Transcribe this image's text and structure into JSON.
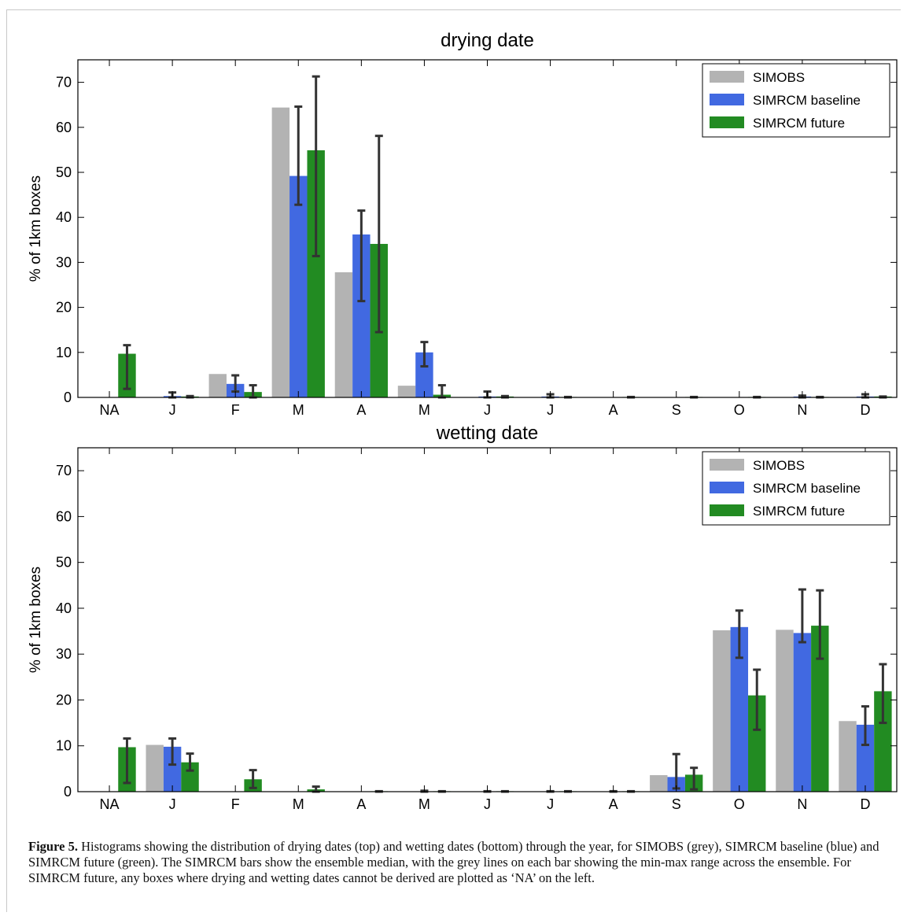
{
  "colors": {
    "simobs": "#b3b3b3",
    "baseline": "#4169e1",
    "future": "#228b22",
    "errorbar": "#333333"
  },
  "chart_data": [
    {
      "type": "bar",
      "title": "drying date",
      "ylabel": "% of 1km boxes",
      "xlabel": "",
      "ylim": [
        0,
        75
      ],
      "yticks": [
        0,
        10,
        20,
        30,
        40,
        50,
        60,
        70
      ],
      "categories": [
        "NA",
        "J",
        "F",
        "M",
        "A",
        "M",
        "J",
        "J",
        "A",
        "S",
        "O",
        "N",
        "D"
      ],
      "legend_position": "top-right",
      "series": [
        {
          "name": "SIMOBS",
          "color_key": "simobs",
          "values": [
            0,
            0,
            5.2,
            64.4,
            27.8,
            2.6,
            0,
            0,
            0,
            0,
            0,
            0,
            0
          ]
        },
        {
          "name": "SIMRCM baseline",
          "color_key": "baseline",
          "values": [
            0,
            0.3,
            3.0,
            49.2,
            36.2,
            10.0,
            0.2,
            0.2,
            0,
            0,
            0,
            0.2,
            0.2
          ],
          "err_min": [
            0,
            0,
            1.3,
            42.8,
            21.4,
            6.9,
            0,
            0,
            0,
            0,
            0,
            0,
            0
          ],
          "err_max": [
            0,
            1.1,
            4.9,
            64.6,
            41.5,
            12.3,
            1.3,
            0.7,
            0,
            0,
            0,
            0.4,
            0.7
          ]
        },
        {
          "name": "SIMRCM future",
          "color_key": "future",
          "values": [
            9.7,
            0.2,
            1.2,
            54.9,
            34.1,
            0.6,
            0.2,
            0.1,
            0.1,
            0.1,
            0.1,
            0.1,
            0.2
          ],
          "err_min": [
            1.9,
            0,
            0,
            31.4,
            14.5,
            0,
            0,
            0,
            0,
            0,
            0,
            0,
            0
          ],
          "err_max": [
            11.6,
            0.3,
            2.7,
            71.3,
            58.1,
            2.7,
            0.3,
            0.1,
            0.1,
            0.1,
            0.1,
            0.1,
            0.2
          ]
        }
      ]
    },
    {
      "type": "bar",
      "title": "wetting date",
      "ylabel": "% of 1km boxes",
      "xlabel": "",
      "ylim": [
        0,
        75
      ],
      "yticks": [
        0,
        10,
        20,
        30,
        40,
        50,
        60,
        70
      ],
      "categories": [
        "NA",
        "J",
        "F",
        "M",
        "A",
        "M",
        "J",
        "J",
        "A",
        "S",
        "O",
        "N",
        "D"
      ],
      "legend_position": "top-right",
      "series": [
        {
          "name": "SIMOBS",
          "color_key": "simobs",
          "values": [
            0,
            10.2,
            0,
            0,
            0,
            0,
            0,
            0,
            0,
            3.6,
            35.2,
            35.3,
            15.4
          ]
        },
        {
          "name": "SIMRCM baseline",
          "color_key": "baseline",
          "values": [
            0,
            9.8,
            0,
            0,
            0,
            0,
            0,
            0,
            0,
            3.2,
            35.9,
            34.6,
            14.6
          ],
          "err_min": [
            0,
            5.9,
            0,
            0,
            0,
            0,
            0,
            0,
            0,
            0.7,
            29.2,
            32.6,
            10.2
          ],
          "err_max": [
            0,
            11.6,
            0,
            0,
            0,
            0.2,
            0.1,
            0.1,
            0.1,
            8.2,
            39.5,
            44.1,
            18.6
          ]
        },
        {
          "name": "SIMRCM future",
          "color_key": "future",
          "values": [
            9.7,
            6.4,
            2.7,
            0.5,
            0.1,
            0.1,
            0.1,
            0.1,
            0.1,
            3.7,
            21.0,
            36.2,
            21.9
          ],
          "err_min": [
            1.9,
            4.6,
            0.8,
            0,
            0,
            0,
            0,
            0,
            0,
            0.5,
            13.5,
            29.0,
            15.0
          ],
          "err_max": [
            11.6,
            8.3,
            4.7,
            1.1,
            0.1,
            0.1,
            0.1,
            0.1,
            0.1,
            5.2,
            26.6,
            43.9,
            27.8
          ]
        }
      ]
    }
  ],
  "caption": {
    "label": "Figure 5.",
    "text": " Histograms showing the distribution of drying dates (top) and wetting dates (bottom) through the year, for SIMOBS (grey), SIMRCM baseline (blue) and SIMRCM future (green). The SIMRCM bars show the ensemble median, with the grey lines on each bar showing the min-max range across the ensemble. For SIMRCM future, any boxes where drying and wetting dates cannot be derived are plotted as ‘NA’ on the left."
  }
}
